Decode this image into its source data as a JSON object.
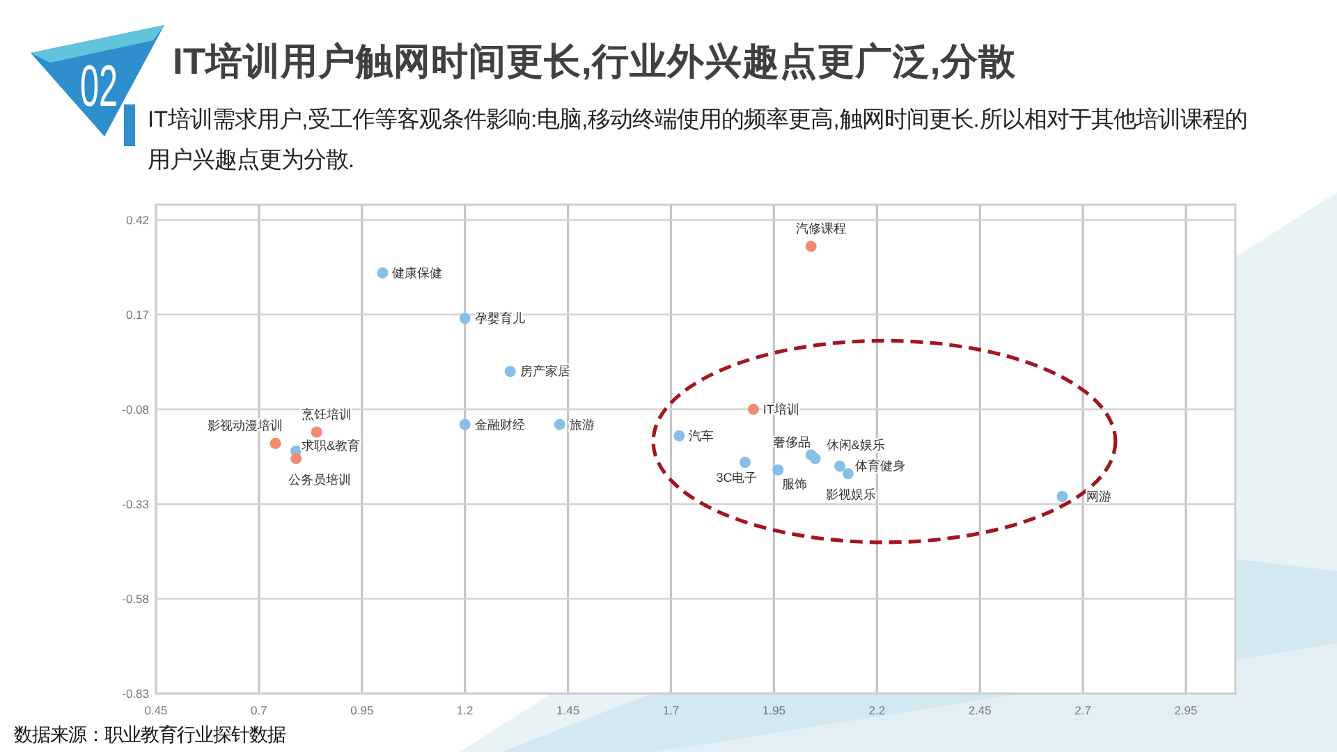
{
  "chart_data": {
    "type": "scatter",
    "title": "IT培训用户触网时间更长,行业外兴趣点更广泛,分散",
    "subtitle": "IT培训需求用户,受工作等客观条件影响:电脑,移动终端使用的频率更高,触网时间更长.所以相对于其他培训课程的用户兴趣点更为分散.",
    "annotations": [
      "02",
      "数据来源：职业教育行业探针数据",
      {
        "text": "健康保健",
        "x": 1.0,
        "y": 0.28
      },
      {
        "text": "孕婴育儿",
        "x": 1.2,
        "y": 0.16
      },
      {
        "text": "房产家居",
        "x": 1.31,
        "y": 0.02
      },
      {
        "text": "金融财经",
        "x": 1.2,
        "y": -0.12
      },
      {
        "text": "旅游",
        "x": 1.43,
        "y": -0.12
      },
      {
        "text": "求职&教育",
        "x": 0.79,
        "y": -0.19
      },
      {
        "text": "汽车",
        "x": 1.72,
        "y": -0.15
      },
      {
        "text": "3C电子",
        "x": 1.88,
        "y": -0.22
      },
      {
        "text": "服饰",
        "x": 1.96,
        "y": -0.24
      },
      {
        "text": "奢侈品",
        "x": 2.04,
        "y": -0.2
      },
      {
        "text": "休闲&娱乐",
        "x": 2.05,
        "y": -0.21
      },
      {
        "text": "体育健身",
        "x": 2.11,
        "y": -0.23
      },
      {
        "text": "影视娱乐",
        "x": 2.13,
        "y": -0.25
      },
      {
        "text": "网游",
        "x": 2.65,
        "y": -0.31
      },
      {
        "text": "汽修课程",
        "x": 2.04,
        "y": 0.35
      },
      {
        "text": "IT培训",
        "x": 1.9,
        "y": -0.08
      },
      {
        "text": "烹饪培训",
        "x": 0.84,
        "y": -0.14
      },
      {
        "text": "影视动漫培训",
        "x": 0.74,
        "y": -0.17
      },
      {
        "text": "公务员培训",
        "x": 0.79,
        "y": -0.21
      }
    ],
    "xlim": [
      0.45,
      3.07
    ],
    "ylim": [
      -0.83,
      0.46
    ],
    "xticks": [
      0.45,
      0.7,
      0.95,
      1.2,
      1.45,
      1.7,
      1.95,
      2.2,
      2.45,
      2.7,
      2.95
    ],
    "yticks": [
      0.42,
      0.17,
      -0.08,
      -0.33,
      -0.58,
      -0.83
    ],
    "grid": true,
    "marker": "circle",
    "series": [
      {
        "color": "#86bfe8",
        "x": [
          1.0,
          1.2,
          1.31,
          1.2,
          1.43,
          0.79,
          1.72,
          1.88,
          1.96,
          2.04,
          2.05,
          2.11,
          2.13,
          2.65
        ],
        "values": [
          0.28,
          0.16,
          0.02,
          -0.12,
          -0.12,
          -0.19,
          -0.15,
          -0.22,
          -0.24,
          -0.2,
          -0.21,
          -0.23,
          -0.25,
          -0.31
        ]
      },
      {
        "color": "#f28b72",
        "x": [
          2.04,
          1.9,
          0.84,
          0.74,
          0.79
        ],
        "values": [
          0.35,
          -0.08,
          -0.14,
          -0.17,
          -0.21
        ]
      }
    ]
  }
}
